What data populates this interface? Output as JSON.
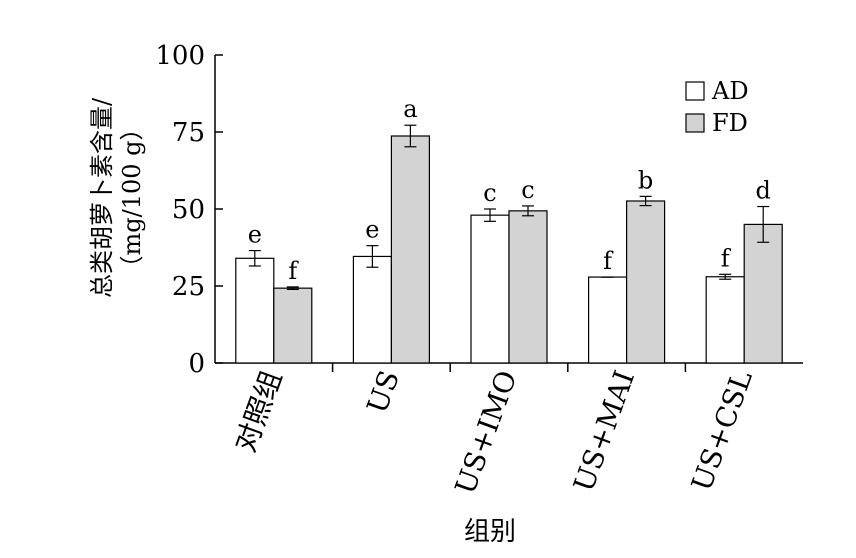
{
  "chart_data": {
    "type": "bar",
    "title": "",
    "xlabel": "组别",
    "ylabel_line1": "总类胡萝卜素含量/",
    "ylabel_line2": "（mg/100 g）",
    "ylim": [
      0,
      100
    ],
    "yticks": [
      0,
      25,
      50,
      75,
      100
    ],
    "grid": false,
    "legend_position": "top-right",
    "categories": [
      "对照组",
      "US",
      "US+IMO",
      "US+MAI",
      "US+CSL"
    ],
    "series": [
      {
        "name": "AD",
        "color": "#ffffff",
        "values": [
          34.0,
          34.6,
          48.0,
          27.9,
          28.0
        ],
        "errors": [
          2.5,
          3.5,
          2.0,
          0.0,
          0.8
        ],
        "letters": [
          "e",
          "e",
          "c",
          "f",
          "f"
        ]
      },
      {
        "name": "FD",
        "color": "#d3d3d3",
        "values": [
          24.3,
          73.7,
          49.4,
          52.6,
          45.0
        ],
        "errors": [
          0.4,
          3.5,
          1.6,
          1.5,
          5.8
        ],
        "letters": [
          "f",
          "a",
          "c",
          "b",
          "d"
        ]
      }
    ]
  }
}
